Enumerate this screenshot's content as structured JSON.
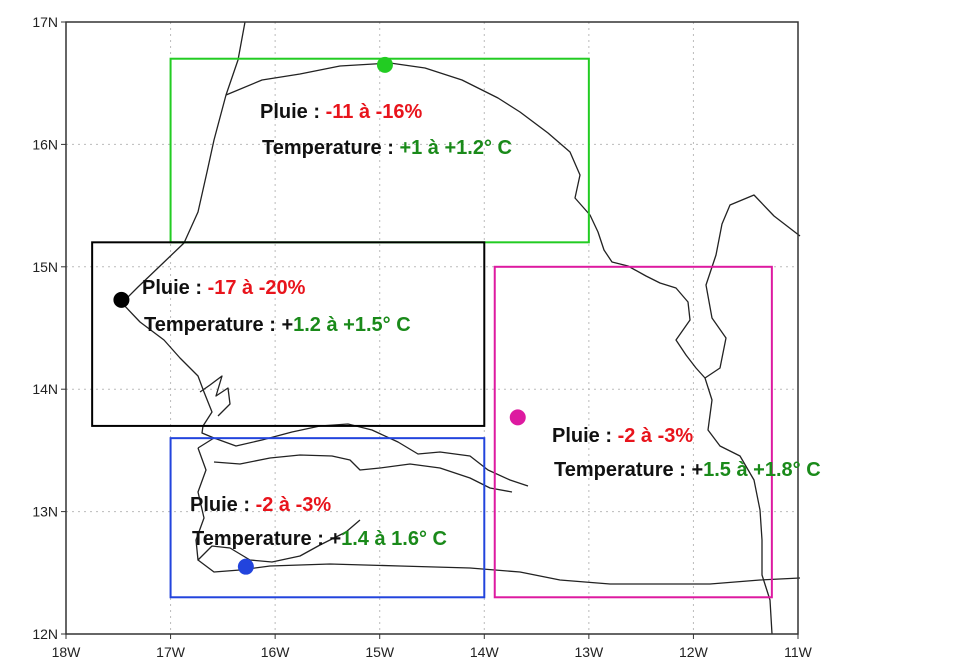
{
  "map": {
    "lon_range": [
      -18,
      -11
    ],
    "lat_range": [
      12,
      17
    ],
    "x_ticks": [
      "18W",
      "17W",
      "16W",
      "15W",
      "14W",
      "13W",
      "12W",
      "11W"
    ],
    "y_ticks": [
      "12N",
      "13N",
      "14N",
      "15N",
      "16N",
      "17N"
    ],
    "grid": true
  },
  "zones": [
    {
      "id": "north",
      "color": "#22cc22",
      "box": {
        "lon0": -17.0,
        "lat0": 15.2,
        "lon1": -13.0,
        "lat1": 16.7
      },
      "station": {
        "lon": -14.95,
        "lat": 16.65
      },
      "rain_label": "Pluie :",
      "rain_value": "-11 à -16%",
      "temp_label": "Temperature",
      "temp_sep": ":",
      "temp_value": "+1 à +1.2° C"
    },
    {
      "id": "west",
      "color": "#000000",
      "box": {
        "lon0": -17.75,
        "lat0": 13.7,
        "lon1": -14.0,
        "lat1": 15.2
      },
      "station": {
        "lon": -17.47,
        "lat": 14.73
      },
      "rain_label": "Pluie :",
      "rain_value": "-17 à -20%",
      "temp_label": "Temperature",
      "temp_sep": ": +",
      "temp_value": "1.2 à +1.5° C"
    },
    {
      "id": "east",
      "color": "#dd1aa0",
      "box": {
        "lon0": -13.9,
        "lat0": 12.3,
        "lon1": -11.25,
        "lat1": 15.0
      },
      "station": {
        "lon": -13.68,
        "lat": 13.77
      },
      "rain_label": "Pluie :",
      "rain_value": "-2 à -3%",
      "temp_label": "Temperature",
      "temp_sep": ": +",
      "temp_value": "1.5 à +1.8° C"
    },
    {
      "id": "south",
      "color": "#2244dd",
      "box": {
        "lon0": -17.0,
        "lat0": 12.3,
        "lon1": -14.0,
        "lat1": 13.6
      },
      "station": {
        "lon": -16.28,
        "lat": 12.55
      },
      "rain_label": "Pluie :",
      "rain_value": "-2 à -3%",
      "temp_label": "Temperature",
      "temp_sep": ": +",
      "temp_value": "1.4 à 1.6° C"
    }
  ],
  "colors": {
    "rain_value": "#e8141c",
    "temp_value": "#1a8a1a"
  }
}
